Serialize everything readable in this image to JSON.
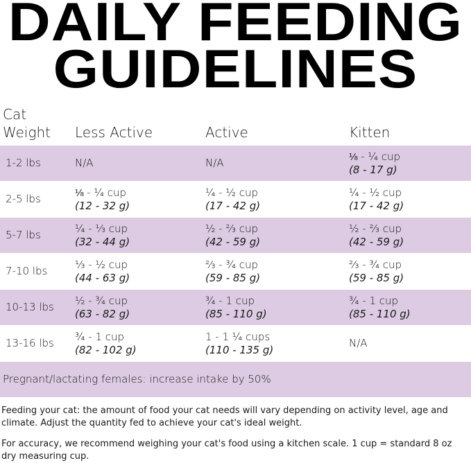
{
  "title_line1": "DAILY FEEDING",
  "title_line2": "GUIDELINES",
  "headers": [
    "Cat\nWeight",
    "Less Active",
    "Active",
    "Kitten"
  ],
  "header_cat": "Cat",
  "header_weight": "Weight",
  "rows": [
    {
      "weight": "1-2 lbs",
      "less": {
        "cup": "N/A",
        "g": ""
      },
      "active": {
        "cup": "N/A",
        "g": ""
      },
      "kitten": {
        "cup": "⅛ - ¼ cup",
        "g": "(8 - 17 g)"
      }
    },
    {
      "weight": "2-5 lbs",
      "less": {
        "cup": "⅛ - ¼ cup",
        "g": "(12 - 32 g)"
      },
      "active": {
        "cup": "¼ - ½ cup",
        "g": "(17 - 42 g)"
      },
      "kitten": {
        "cup": "¼ - ½ cup",
        "g": "(17 - 42 g)"
      }
    },
    {
      "weight": "5-7 lbs",
      "less": {
        "cup": "¼ - ⅓ cup",
        "g": "(32 - 44 g)"
      },
      "active": {
        "cup": "½ - ⅔ cup",
        "g": "(42 - 59 g)"
      },
      "kitten": {
        "cup": "½ - ⅔ cup",
        "g": "(42 - 59 g)"
      }
    },
    {
      "weight": "7-10 lbs",
      "less": {
        "cup": "⅓ - ½ cup",
        "g": "(44 - 63 g)"
      },
      "active": {
        "cup": "⅔ - ¾ cup",
        "g": "(59 - 85 g)"
      },
      "kitten": {
        "cup": "⅔ - ¾ cup",
        "g": "(59 - 85 g)"
      }
    },
    {
      "weight": "10-13 lbs",
      "less": {
        "cup": "½ - ¾ cup",
        "g": "(63 - 82 g)"
      },
      "active": {
        "cup": "¾ - 1 cup",
        "g": "(85 - 110 g)"
      },
      "kitten": {
        "cup": "¾ - 1 cup",
        "g": "(85 - 110 g)"
      }
    },
    {
      "weight": "13-16 lbs",
      "less": {
        "cup": "¾ - 1 cup",
        "g": "(82 - 102 g)"
      },
      "active": {
        "cup": "1 - 1 ¼ cups",
        "g": "(110 - 135 g)"
      },
      "kitten": {
        "cup": "N/A",
        "g": ""
      }
    }
  ],
  "pregnant_note": "Pregnant/lactating females: increase intake by 50%",
  "note1": "Feeding your cat: the amount of food your cat needs will vary depending on activity level, age and climate. Adjust the quantity fed to achieve your cat's ideal weight.",
  "note2": "For accuracy, we recommend weighing your cat's food using a kitchen scale. 1 cup = standard 8 oz dry measuring cup.",
  "colors": {
    "row_shade": "#dccbe3"
  }
}
